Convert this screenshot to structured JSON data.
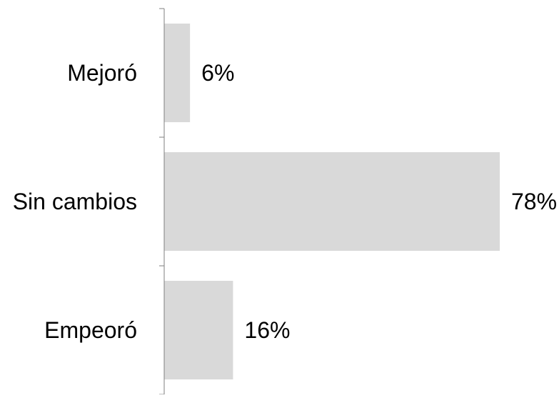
{
  "chart_data": {
    "type": "bar",
    "orientation": "horizontal",
    "categories": [
      "Mejoró",
      "Sin cambios",
      "Empeoró"
    ],
    "values": [
      6,
      78,
      16
    ],
    "value_labels": [
      "6%",
      "78%",
      "16%"
    ],
    "unit": "%",
    "title": "",
    "xlabel": "",
    "ylabel": "",
    "xlim": [
      0,
      78
    ],
    "grid": false,
    "legend": "none",
    "bar_color": "#d9d9d9",
    "axis_color": "#7f7f7f"
  }
}
